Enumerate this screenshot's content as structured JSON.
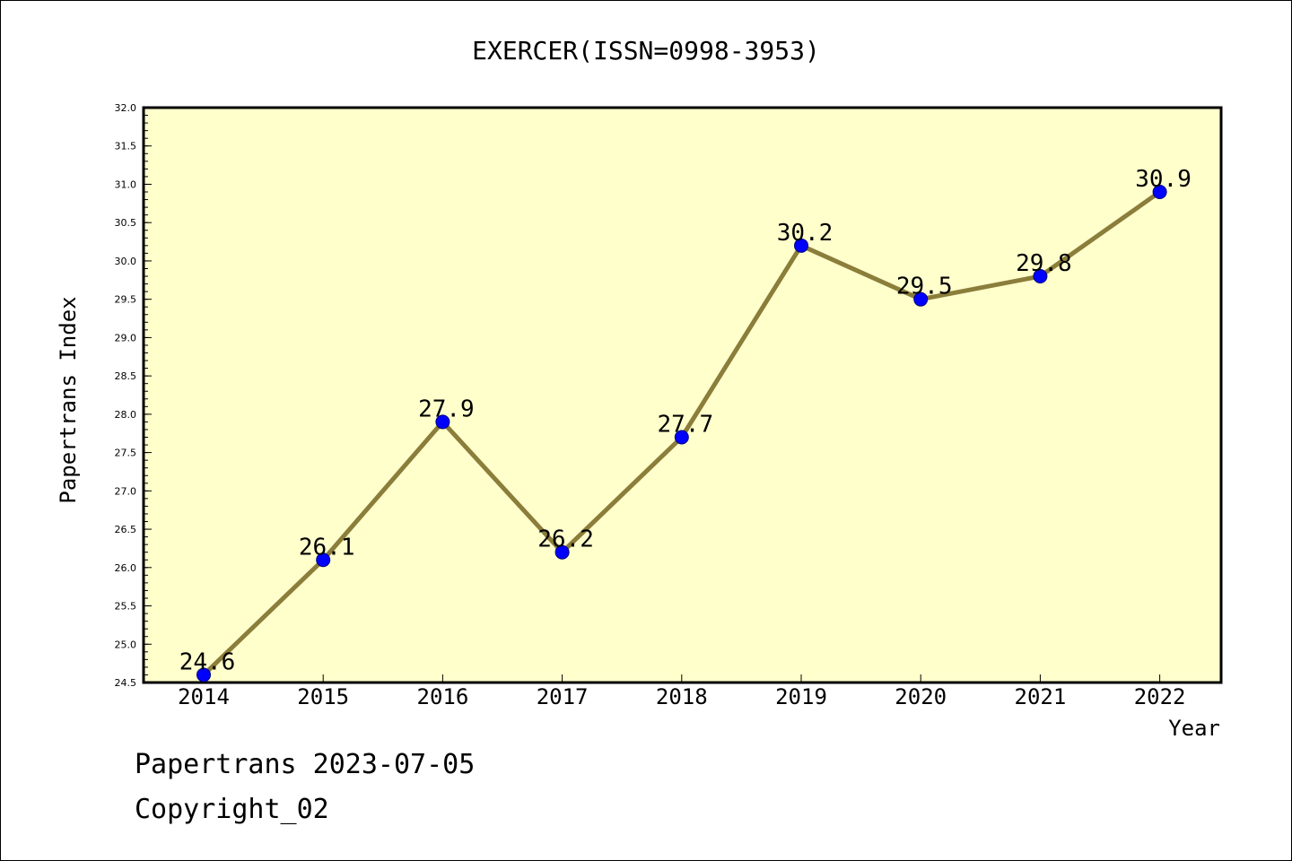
{
  "chart_data": {
    "type": "line",
    "title": "EXERCER(ISSN=0998-3953)",
    "xlabel": "Year",
    "ylabel": "Papertrans Index",
    "categories": [
      "2014",
      "2015",
      "2016",
      "2017",
      "2018",
      "2019",
      "2020",
      "2021",
      "2022"
    ],
    "values": [
      24.6,
      26.1,
      27.9,
      26.2,
      27.7,
      30.2,
      29.5,
      29.8,
      30.9
    ],
    "data_labels": [
      "24.6",
      "26.1",
      "27.9",
      "26.2",
      "27.7",
      "30.2",
      "29.5",
      "29.8",
      "30.9"
    ],
    "ylim": [
      24.5,
      32.0
    ],
    "yticks": [
      "24.5",
      "25.0",
      "25.5",
      "26.0",
      "26.5",
      "27.0",
      "27.5",
      "28.0",
      "28.5",
      "29.0",
      "29.5",
      "30.0",
      "30.5",
      "31.0",
      "31.5",
      "32.0"
    ],
    "grid": false,
    "colors": {
      "plot_background": "#ffffcc",
      "line": "#8b7d3a",
      "marker": "#0000ff"
    }
  },
  "footer": {
    "line1": "Papertrans 2023-07-05",
    "line2": "Copyright_02"
  }
}
